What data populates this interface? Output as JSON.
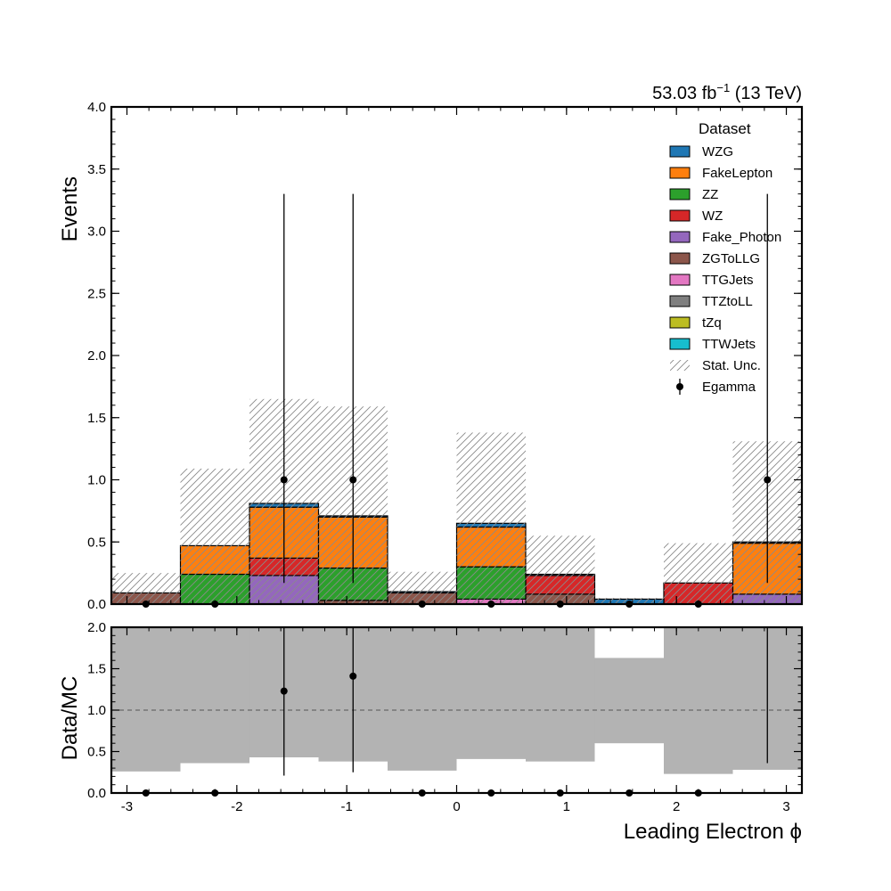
{
  "lumi_label": {
    "value": "53.03 fb",
    "sup": "−1",
    "energy": " (13 TeV)"
  },
  "chart_data": {
    "type": "histogram",
    "xlabel": "Leading Electron ϕ",
    "bins": [
      -3.1416,
      -2.5133,
      -1.885,
      -1.2566,
      -0.6283,
      0.0,
      0.6283,
      1.2566,
      1.885,
      2.5133,
      3.1416
    ],
    "main": {
      "ylabel": "Events",
      "ylim": [
        0,
        4.0
      ],
      "yticks": [
        "0.0",
        "0.5",
        "1.0",
        "1.5",
        "2.0",
        "2.5",
        "3.0",
        "3.5",
        "4.0"
      ],
      "xticks": [
        "-3",
        "-2",
        "-1",
        "0",
        "1",
        "2",
        "3"
      ],
      "stack_order_bottom_to_top": [
        "ZGToLLG",
        "Fake_Photon",
        "TTGJets",
        "WZ",
        "ZZ",
        "FakeLepton",
        "WZG"
      ],
      "series": [
        {
          "name": "ZGToLLG",
          "color": "#8c564b",
          "values": [
            0.09,
            0.0,
            0.0,
            0.03,
            0.09,
            0.0,
            0.08,
            0.0,
            0.0,
            0.0
          ]
        },
        {
          "name": "Fake_Photon",
          "color": "#9467bd",
          "values": [
            0.0,
            0.0,
            0.23,
            0.0,
            0.0,
            0.0,
            0.0,
            0.0,
            0.0,
            0.08
          ]
        },
        {
          "name": "TTGJets",
          "color": "#e377c2",
          "values": [
            0.0,
            0.0,
            0.0,
            0.0,
            0.0,
            0.04,
            0.0,
            0.0,
            0.0,
            0.0
          ]
        },
        {
          "name": "WZ",
          "color": "#d62728",
          "values": [
            0.0,
            0.0,
            0.14,
            0.0,
            0.0,
            0.0,
            0.15,
            0.0,
            0.17,
            0.0
          ]
        },
        {
          "name": "ZZ",
          "color": "#2ca02c",
          "values": [
            0.0,
            0.24,
            0.0,
            0.26,
            0.0,
            0.26,
            0.0,
            0.0,
            0.0,
            0.0
          ]
        },
        {
          "name": "FakeLepton",
          "color": "#ff7f0e",
          "values": [
            0.0,
            0.23,
            0.41,
            0.41,
            0.0,
            0.32,
            0.0,
            0.0,
            0.0,
            0.41
          ]
        },
        {
          "name": "WZG",
          "color": "#1f77b4",
          "values": [
            0.0,
            0.0,
            0.03,
            0.01,
            0.01,
            0.03,
            0.01,
            0.04,
            0.0,
            0.01
          ]
        }
      ],
      "stat_unc": {
        "name": "Stat. Unc.",
        "low": [
          0.0,
          0.0,
          0.0,
          0.0,
          0.0,
          0.0,
          0.0,
          0.0,
          0.0,
          0.0
        ],
        "high": [
          0.25,
          1.09,
          1.65,
          1.59,
          0.26,
          1.38,
          0.55,
          0.05,
          0.49,
          1.31
        ]
      },
      "data": {
        "name": "Egamma",
        "values": [
          0,
          0,
          1,
          1,
          0,
          0,
          0,
          0,
          0,
          1
        ],
        "err_low": [
          0,
          0,
          0.83,
          0.83,
          0,
          0,
          0,
          0,
          0,
          0.83
        ],
        "err_high": [
          0,
          0,
          2.3,
          2.3,
          0,
          0,
          0,
          0,
          0,
          2.3
        ]
      },
      "legend": {
        "title": "Dataset",
        "placement": "top-right",
        "entries": [
          {
            "label": "WZG",
            "color": "#1f77b4",
            "kind": "box"
          },
          {
            "label": "FakeLepton",
            "color": "#ff7f0e",
            "kind": "box"
          },
          {
            "label": "ZZ",
            "color": "#2ca02c",
            "kind": "box"
          },
          {
            "label": "WZ",
            "color": "#d62728",
            "kind": "box"
          },
          {
            "label": "Fake_Photon",
            "color": "#9467bd",
            "kind": "box"
          },
          {
            "label": "ZGToLLG",
            "color": "#8c564b",
            "kind": "box"
          },
          {
            "label": "TTGJets",
            "color": "#e377c2",
            "kind": "box"
          },
          {
            "label": "TTZtoLL",
            "color": "#7f7f7f",
            "kind": "box"
          },
          {
            "label": "tZq",
            "color": "#bcbd22",
            "kind": "box"
          },
          {
            "label": "TTWJets",
            "color": "#17becf",
            "kind": "box"
          },
          {
            "label": "Stat. Unc.",
            "color": "#888888",
            "kind": "hatch"
          },
          {
            "label": "Egamma",
            "color": "#000000",
            "kind": "point"
          }
        ]
      }
    },
    "ratio": {
      "ylabel": "Data/MC",
      "ylim": [
        0,
        2.0
      ],
      "yticks": [
        "0.0",
        "0.5",
        "1.0",
        "1.5",
        "2.0"
      ],
      "reference_line": 1.0,
      "unc_band_low": [
        0.26,
        0.36,
        0.43,
        0.38,
        0.27,
        0.41,
        0.38,
        0.6,
        0.23,
        0.28
      ],
      "unc_band_high": [
        2.0,
        2.0,
        2.0,
        2.0,
        2.0,
        2.0,
        2.0,
        1.63,
        2.0,
        2.0
      ],
      "values": [
        0,
        0,
        1.23,
        1.41,
        0,
        0,
        0,
        0,
        0,
        null
      ],
      "err_low": [
        0,
        0,
        1.02,
        1.16,
        0,
        0,
        0,
        0,
        0,
        null
      ],
      "err_high": [
        0,
        0,
        2.9,
        3.2,
        0,
        0,
        0,
        0,
        0,
        null
      ],
      "extra_lines": [
        {
          "x_bin": 9,
          "low": 0.36,
          "high": 2.0
        }
      ]
    }
  }
}
